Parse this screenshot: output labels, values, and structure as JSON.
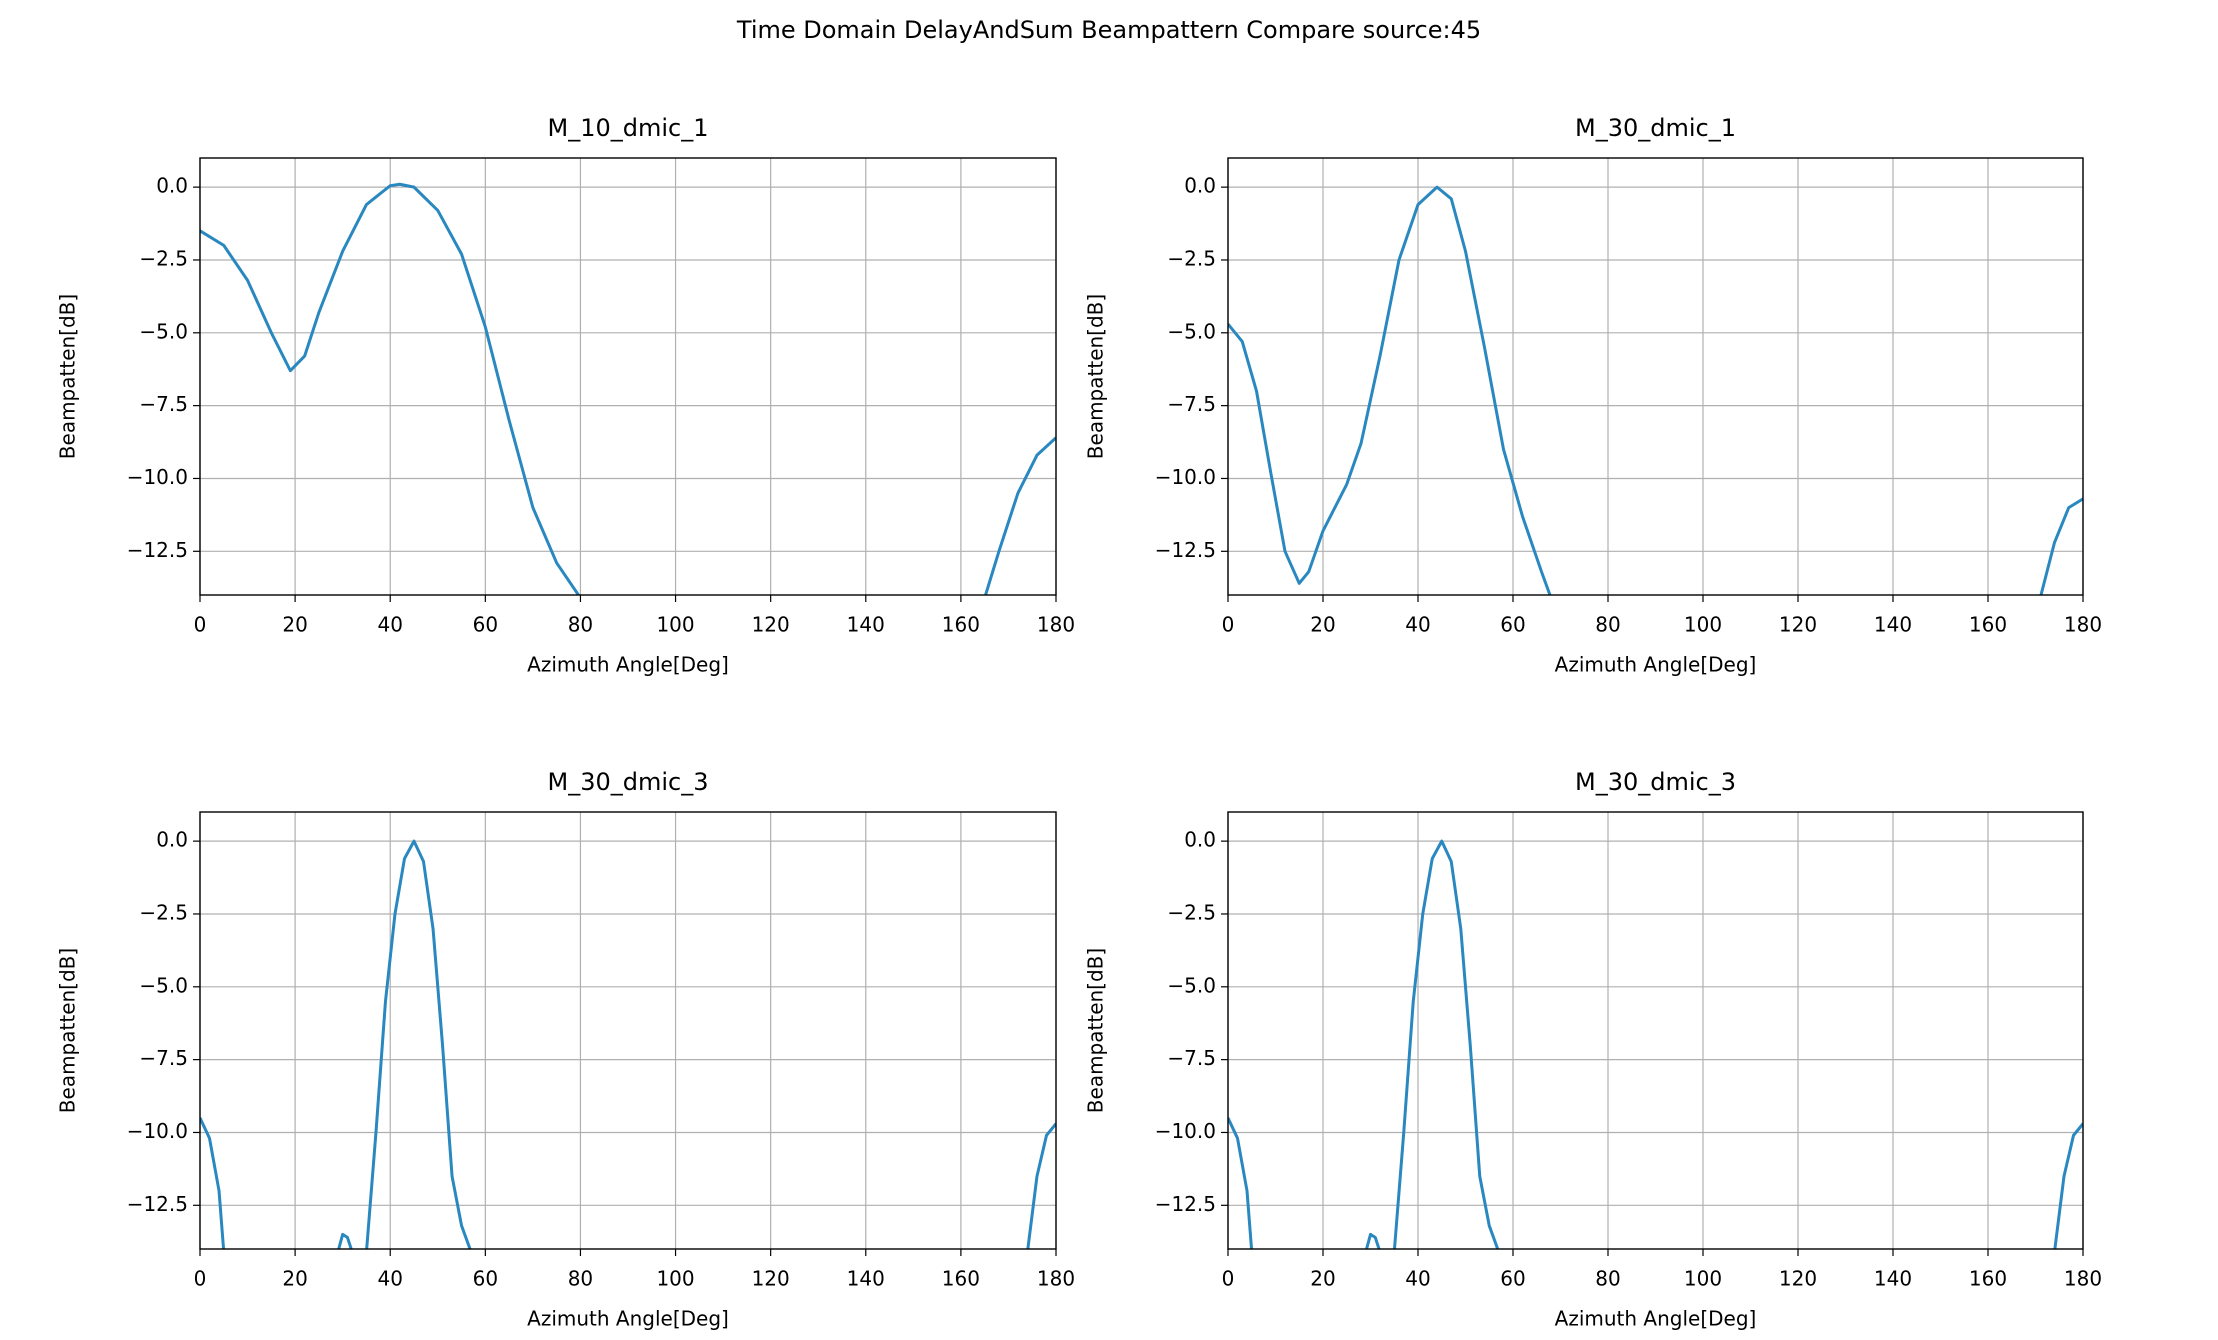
{
  "title": "Time Domain DelayAndSum  Beampattern Compare source:45",
  "chart_data": [
    {
      "type": "line",
      "title": "M_10_dmic_1",
      "xlabel": "Azimuth Angle[Deg]",
      "ylabel": "Beampatten[dB]",
      "x": [
        0,
        5,
        10,
        15,
        19,
        22,
        25,
        30,
        35,
        40,
        42,
        45,
        50,
        55,
        60,
        65,
        70,
        75,
        80,
        120,
        165,
        168,
        172,
        176,
        180
      ],
      "series": [
        {
          "color": "#2a88c0",
          "values": [
            -1.5,
            -2.0,
            -3.2,
            -5.0,
            -6.3,
            -5.8,
            -4.3,
            -2.2,
            -0.6,
            0.05,
            0.1,
            0,
            -0.8,
            -2.3,
            -4.8,
            -8.0,
            -11.0,
            -12.9,
            -14.1,
            null,
            -14.1,
            -12.5,
            -10.5,
            -9.2,
            -8.6
          ]
        }
      ],
      "xlim": [
        0,
        180
      ],
      "ylim": [
        -14,
        1
      ],
      "xticks": [
        0,
        20,
        40,
        60,
        80,
        100,
        120,
        140,
        160,
        180
      ],
      "yticks": [
        {
          "value": 0,
          "label": "0.0"
        },
        {
          "value": -2.5,
          "label": "−2.5"
        },
        {
          "value": -5,
          "label": "−5.0"
        },
        {
          "value": -7.5,
          "label": "−7.5"
        },
        {
          "value": -10,
          "label": "−10.0"
        },
        {
          "value": -12.5,
          "label": "−12.5"
        }
      ],
      "grid": true
    },
    {
      "type": "line",
      "title": "M_30_dmic_1",
      "xlabel": "Azimuth Angle[Deg]",
      "ylabel": "Beampatten[dB]",
      "x": [
        0,
        3,
        6,
        9,
        12,
        15,
        17,
        20,
        25,
        28,
        32,
        36,
        40,
        44,
        47,
        50,
        54,
        58,
        62,
        66,
        68,
        120,
        171,
        174,
        177,
        180
      ],
      "series": [
        {
          "color": "#2a88c0",
          "values": [
            -4.7,
            -5.3,
            -7.0,
            -9.8,
            -12.5,
            -13.6,
            -13.2,
            -11.8,
            -10.2,
            -8.8,
            -5.8,
            -2.5,
            -0.6,
            0,
            -0.4,
            -2.2,
            -5.5,
            -9.0,
            -11.3,
            -13.2,
            -14.1,
            null,
            -14.1,
            -12.2,
            -11.0,
            -10.7
          ]
        }
      ],
      "xlim": [
        0,
        180
      ],
      "ylim": [
        -14,
        1
      ],
      "xticks": [
        0,
        20,
        40,
        60,
        80,
        100,
        120,
        140,
        160,
        180
      ],
      "yticks": [
        {
          "value": 0,
          "label": "0.0"
        },
        {
          "value": -2.5,
          "label": "−2.5"
        },
        {
          "value": -5,
          "label": "−5.0"
        },
        {
          "value": -7.5,
          "label": "−7.5"
        },
        {
          "value": -10,
          "label": "−10.0"
        },
        {
          "value": -12.5,
          "label": "−12.5"
        }
      ],
      "grid": true
    },
    {
      "type": "line",
      "title": "M_30_dmic_3",
      "xlabel": "Azimuth Angle[Deg]",
      "ylabel": "Beampatten[dB]",
      "x": [
        0,
        2,
        4,
        5,
        17,
        29,
        30,
        31,
        32,
        33,
        35,
        37,
        39,
        41,
        43,
        45,
        47,
        49,
        51,
        53,
        55,
        57,
        120,
        174,
        176,
        178,
        180
      ],
      "series": [
        {
          "color": "#2a88c0",
          "values": [
            -9.5,
            -10.2,
            -12.0,
            -14.1,
            null,
            -14.1,
            -13.5,
            -13.6,
            -14.1,
            null,
            -14.1,
            -10.0,
            -5.5,
            -2.5,
            -0.6,
            0,
            -0.7,
            -3.0,
            -7.0,
            -11.5,
            -13.2,
            -14.1,
            null,
            -14.1,
            -11.5,
            -10.1,
            -9.7
          ]
        }
      ],
      "xlim": [
        0,
        180
      ],
      "ylim": [
        -14,
        1
      ],
      "xticks": [
        0,
        20,
        40,
        60,
        80,
        100,
        120,
        140,
        160,
        180
      ],
      "yticks": [
        {
          "value": 0,
          "label": "0.0"
        },
        {
          "value": -2.5,
          "label": "−2.5"
        },
        {
          "value": -5,
          "label": "−5.0"
        },
        {
          "value": -7.5,
          "label": "−7.5"
        },
        {
          "value": -10,
          "label": "−10.0"
        },
        {
          "value": -12.5,
          "label": "−12.5"
        }
      ],
      "grid": true
    },
    {
      "type": "line",
      "title": "M_30_dmic_3",
      "xlabel": "Azimuth Angle[Deg]",
      "ylabel": "Beampatten[dB]",
      "x": [
        0,
        2,
        4,
        5,
        17,
        29,
        30,
        31,
        32,
        33,
        35,
        37,
        39,
        41,
        43,
        45,
        47,
        49,
        51,
        53,
        55,
        57,
        120,
        174,
        176,
        178,
        180
      ],
      "series": [
        {
          "color": "#2a88c0",
          "values": [
            -9.5,
            -10.2,
            -12.0,
            -14.1,
            null,
            -14.1,
            -13.5,
            -13.6,
            -14.1,
            null,
            -14.1,
            -10.0,
            -5.5,
            -2.5,
            -0.6,
            0,
            -0.7,
            -3.0,
            -7.0,
            -11.5,
            -13.2,
            -14.1,
            null,
            -14.1,
            -11.5,
            -10.1,
            -9.7
          ]
        }
      ],
      "xlim": [
        0,
        180
      ],
      "ylim": [
        -14,
        1
      ],
      "xticks": [
        0,
        20,
        40,
        60,
        80,
        100,
        120,
        140,
        160,
        180
      ],
      "yticks": [
        {
          "value": 0,
          "label": "0.0"
        },
        {
          "value": -2.5,
          "label": "−2.5"
        },
        {
          "value": -5,
          "label": "−5.0"
        },
        {
          "value": -7.5,
          "label": "−7.5"
        },
        {
          "value": -10,
          "label": "−10.0"
        },
        {
          "value": -12.5,
          "label": "−12.5"
        }
      ],
      "grid": true
    }
  ]
}
